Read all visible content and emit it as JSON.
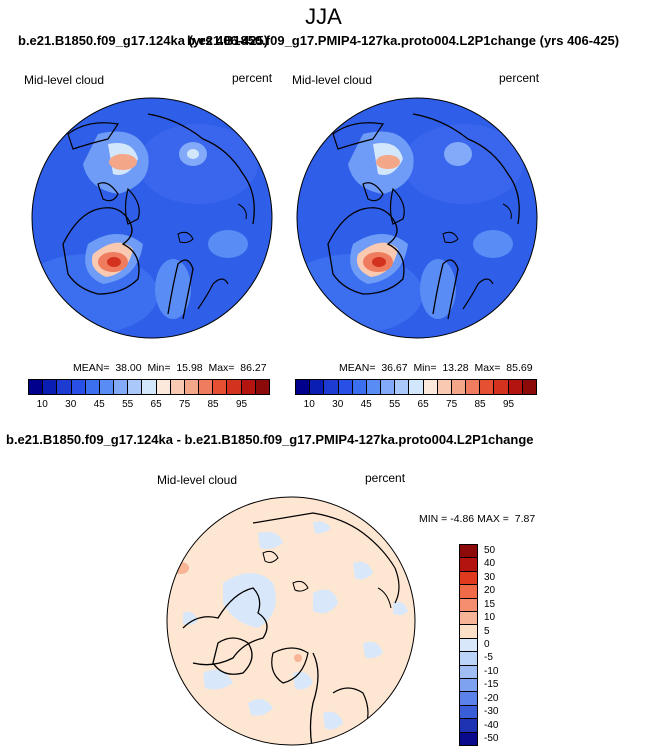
{
  "season": "JJA",
  "top_titles": {
    "left": "b.e21.B1850.f09_g17.124ka (yrs 406-425)",
    "right": "b.e21.B1850.f09_g17.PMIP4-127ka.proto004.L2P1change (yrs 406-425)"
  },
  "panels": [
    {
      "variable": "Mid-level cloud",
      "units": "percent",
      "stats": {
        "mean_label": "MEAN=",
        "mean": "38.00",
        "min_label": "Min=",
        "min": "15.98",
        "max_label": "Max=",
        "max": "86.27"
      }
    },
    {
      "variable": "Mid-level cloud",
      "units": "percent",
      "stats": {
        "mean_label": "MEAN=",
        "mean": "36.67",
        "min_label": "Min=",
        "min": "13.28",
        "max_label": "Max=",
        "max": "85.69"
      }
    }
  ],
  "abs_colorbar": {
    "colors": [
      "#00008c",
      "#0a1eb4",
      "#1e3cd2",
      "#2850e6",
      "#3c6ef0",
      "#5a8cf5",
      "#82aaf8",
      "#aac8fa",
      "#d2e6fc",
      "#fde9dc",
      "#f9c9b2",
      "#f4a688",
      "#ef7c5e",
      "#e65032",
      "#d2321e",
      "#b4140f",
      "#8c0a0a"
    ],
    "ticks": [
      "10",
      "30",
      "45",
      "55",
      "65",
      "75",
      "85",
      "95"
    ]
  },
  "diff_title": "b.e21.B1850.f09_g17.124ka - b.e21.B1850.f09_g17.PMIP4-127ka.proto004.L2P1change",
  "diff_panel": {
    "variable": "Mid-level cloud",
    "units": "percent",
    "min_label": "MIN =",
    "min": "-4.86",
    "max_label": "MAX =",
    "max": "7.87"
  },
  "diff_colorbar": {
    "colors": [
      "#8c0a0a",
      "#b4140f",
      "#e03a1e",
      "#ef6a46",
      "#f48e6e",
      "#f8b496",
      "#fde0c8",
      "#d8e8fa",
      "#bcd4f8",
      "#a0bef5",
      "#7ea2f0",
      "#5a82e8",
      "#3a5ed8",
      "#1e32b4",
      "#0a0a8c"
    ],
    "ticks": [
      "50",
      "40",
      "30",
      "20",
      "15",
      "10",
      "5",
      "0",
      "-5",
      "-10",
      "-15",
      "-20",
      "-30",
      "-40",
      "-50"
    ]
  }
}
